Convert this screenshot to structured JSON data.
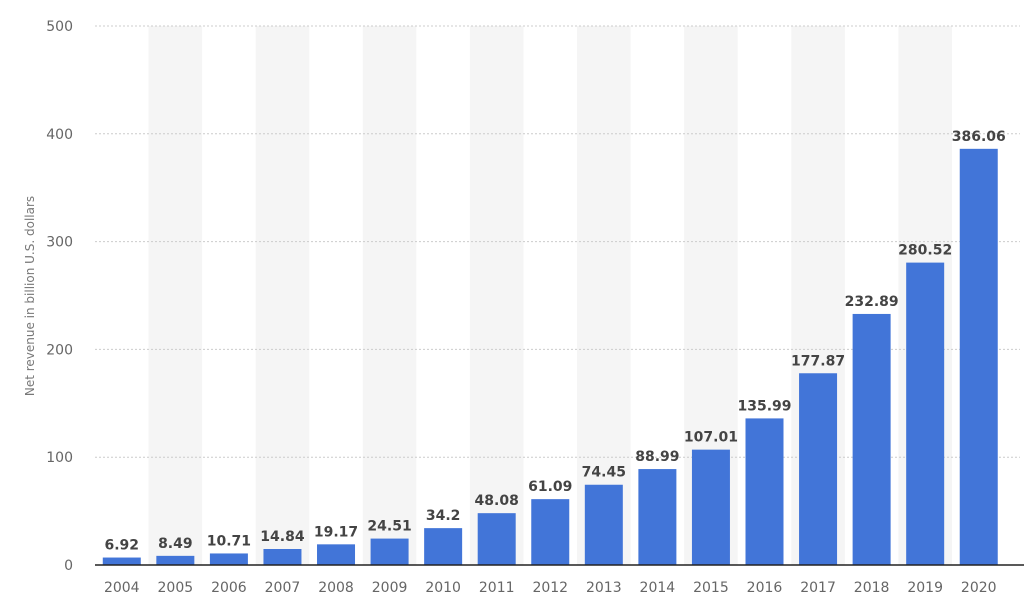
{
  "chart_data": {
    "type": "bar",
    "title": "",
    "xlabel": "",
    "ylabel": "Net revenue in billion U.S. dollars",
    "ylim": [
      0,
      500
    ],
    "yticks": [
      0,
      100,
      200,
      300,
      400,
      500
    ],
    "grid": true,
    "categories": [
      "2004",
      "2005",
      "2006",
      "2007",
      "2008",
      "2009",
      "2010",
      "2011",
      "2012",
      "2013",
      "2014",
      "2015",
      "2016",
      "2017",
      "2018",
      "2019",
      "2020"
    ],
    "values": [
      6.92,
      8.49,
      10.71,
      14.84,
      19.17,
      24.51,
      34.2,
      48.08,
      61.09,
      74.45,
      88.99,
      107.01,
      135.99,
      177.87,
      232.89,
      280.52,
      386.06
    ],
    "value_labels": [
      "6.92",
      "8.49",
      "10.71",
      "14.84",
      "19.17",
      "24.51",
      "34.2",
      "48.08",
      "61.09",
      "74.45",
      "88.99",
      "107.01",
      "135.99",
      "177.87",
      "232.89",
      "280.52",
      "386.06"
    ],
    "colors": {
      "bar": "#4275d8",
      "band": "#f5f5f5",
      "grid": "#cccccc",
      "axis": "#222222"
    }
  }
}
